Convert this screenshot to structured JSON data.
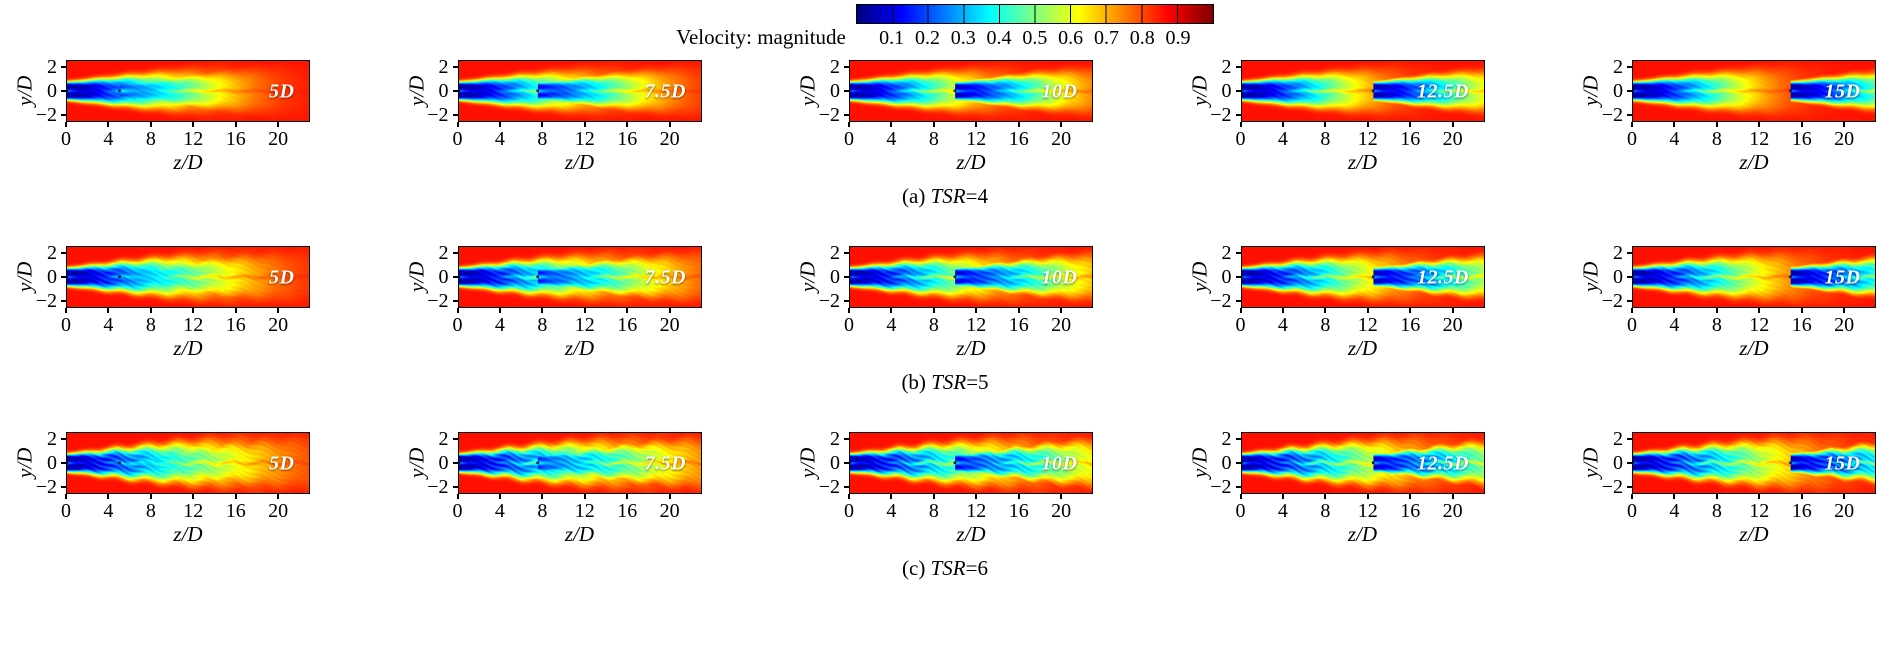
{
  "figure": {
    "colorbar": {
      "label": "Velocity: magnitude",
      "tick_labels": [
        "0.1",
        "0.2",
        "0.3",
        "0.4",
        "0.5",
        "0.6",
        "0.7",
        "0.8",
        "0.9"
      ]
    },
    "axes": {
      "xlabel": "z/D",
      "ylabel": "y/D",
      "xtick_labels": [
        "0",
        "4",
        "8",
        "12",
        "16",
        "20"
      ],
      "xtick_values": [
        0,
        4,
        8,
        12,
        16,
        20
      ],
      "ytick_labels": [
        "2",
        "0",
        "−2"
      ],
      "ytick_values": [
        2,
        0,
        -2
      ],
      "xlim": [
        0,
        23
      ],
      "ylim": [
        -2.6,
        2.6
      ]
    },
    "rows": [
      {
        "tsr": 4,
        "caption_parts": {
          "prefix": "(a) ",
          "italic": "TSR",
          "suffix": "=4"
        },
        "panels": [
          {
            "label": "5D",
            "spacing": 5
          },
          {
            "label": "7.5D",
            "spacing": 7.5
          },
          {
            "label": "10D",
            "spacing": 10
          },
          {
            "label": "12.5D",
            "spacing": 12.5
          },
          {
            "label": "15D",
            "spacing": 15
          }
        ]
      },
      {
        "tsr": 5,
        "caption_parts": {
          "prefix": "(b) ",
          "italic": "TSR",
          "suffix": "=5"
        },
        "panels": [
          {
            "label": "5D",
            "spacing": 5
          },
          {
            "label": "7.5D",
            "spacing": 7.5
          },
          {
            "label": "10D",
            "spacing": 10
          },
          {
            "label": "12.5D",
            "spacing": 12.5
          },
          {
            "label": "15D",
            "spacing": 15
          }
        ]
      },
      {
        "tsr": 6,
        "caption_parts": {
          "prefix": "(c) ",
          "italic": "TSR",
          "suffix": "=6"
        },
        "panels": [
          {
            "label": "5D",
            "spacing": 5
          },
          {
            "label": "7.5D",
            "spacing": 7.5
          },
          {
            "label": "10D",
            "spacing": 10
          },
          {
            "label": "12.5D",
            "spacing": 12.5
          },
          {
            "label": "15D",
            "spacing": 15
          }
        ]
      }
    ]
  },
  "chart_data": {
    "type": "heatmap",
    "title": "Velocity: magnitude",
    "colormap": "jet",
    "colorbar_range": [
      0,
      1
    ],
    "colorbar_ticks": [
      0.1,
      0.2,
      0.3,
      0.4,
      0.5,
      0.6,
      0.7,
      0.8,
      0.9
    ],
    "xlabel": "z/D",
    "ylabel": "y/D",
    "xticks": [
      0,
      4,
      8,
      12,
      16,
      20
    ],
    "yticks": [
      2,
      0,
      -2
    ],
    "xlim": [
      0,
      23
    ],
    "ylim": [
      -2.6,
      2.6
    ],
    "grid": false,
    "legend_position": "top-center-colorbar",
    "layout": "3 rows x 5 columns of contour subplots",
    "rows": [
      {
        "caption": "(a) TSR=4",
        "tsr": 4,
        "turbine_spacings_D": [
          5,
          7.5,
          10,
          12.5,
          15
        ],
        "panel_labels": [
          "5D",
          "7.5D",
          "10D",
          "12.5D",
          "15D"
        ]
      },
      {
        "caption": "(b) TSR=5",
        "tsr": 5,
        "turbine_spacings_D": [
          5,
          7.5,
          10,
          12.5,
          15
        ],
        "panel_labels": [
          "5D",
          "7.5D",
          "10D",
          "12.5D",
          "15D"
        ]
      },
      {
        "caption": "(c) TSR=6",
        "tsr": 6,
        "turbine_spacings_D": [
          5,
          7.5,
          10,
          12.5,
          15
        ],
        "panel_labels": [
          "5D",
          "7.5D",
          "10D",
          "12.5D",
          "15D"
        ]
      }
    ],
    "description": "Velocity-magnitude contours (jet colormap) of tandem turbine wakes: red freestream (~0.8-0.9) with low-velocity blue/cyan wake (~0.1-0.4) behind turbines located at z/D=0 and at z/D equal to the panel spacing label; wake recovers downstream through green/yellow/orange."
  }
}
